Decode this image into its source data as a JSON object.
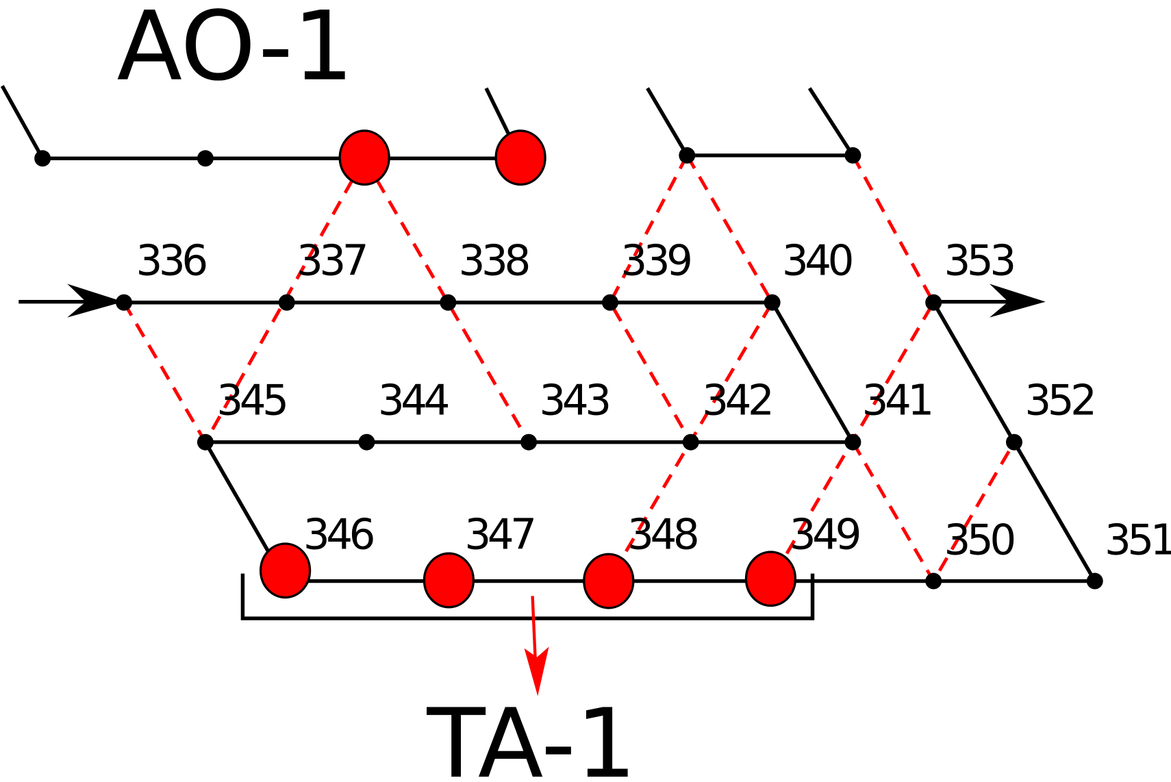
{
  "title": "AO-1",
  "output_label": "TA-1",
  "nodes": [
    "336",
    "337",
    "338",
    "339",
    "340",
    "353",
    "345",
    "344",
    "343",
    "342",
    "341",
    "352",
    "346",
    "347",
    "348",
    "349",
    "350",
    "351"
  ]
}
